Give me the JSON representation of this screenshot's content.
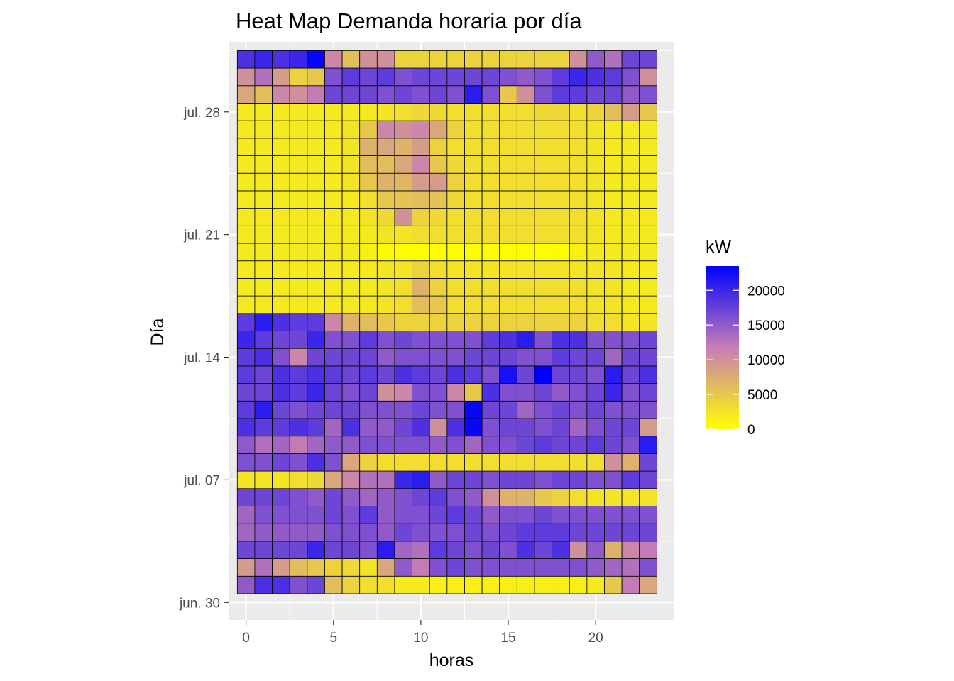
{
  "chart_data": {
    "type": "heatmap",
    "title": "Heat Map Demanda horaria por día",
    "xlabel": "horas",
    "ylabel": "Día",
    "x_ticks": [
      0,
      5,
      10,
      15,
      20
    ],
    "x_range": [
      -1,
      24.5
    ],
    "y_ticks": [
      {
        "date": "2020-06-30",
        "label": "jun. 30"
      },
      {
        "date": "2020-07-07",
        "label": "jul. 07"
      },
      {
        "date": "2020-07-14",
        "label": "jul. 14"
      },
      {
        "date": "2020-07-21",
        "label": "jul. 21"
      },
      {
        "date": "2020-07-28",
        "label": "jul. 28"
      }
    ],
    "y_range": [
      "2020-06-29",
      "2020-08-01"
    ],
    "hours": [
      0,
      1,
      2,
      3,
      4,
      5,
      6,
      7,
      8,
      9,
      10,
      11,
      12,
      13,
      14,
      15,
      16,
      17,
      18,
      19,
      20,
      21,
      22,
      23
    ],
    "days": [
      "2020-07-01",
      "2020-07-02",
      "2020-07-03",
      "2020-07-04",
      "2020-07-05",
      "2020-07-06",
      "2020-07-07",
      "2020-07-08",
      "2020-07-09",
      "2020-07-10",
      "2020-07-11",
      "2020-07-12",
      "2020-07-13",
      "2020-07-14",
      "2020-07-15",
      "2020-07-16",
      "2020-07-17",
      "2020-07-18",
      "2020-07-19",
      "2020-07-20",
      "2020-07-21",
      "2020-07-22",
      "2020-07-23",
      "2020-07-24",
      "2020-07-25",
      "2020-07-26",
      "2020-07-27",
      "2020-07-28",
      "2020-07-29",
      "2020-07-30",
      "2020-07-31"
    ],
    "values": [
      [
        15000,
        19000,
        19000,
        16000,
        17000,
        6000,
        4000,
        3000,
        3000,
        2000,
        2000,
        1500,
        1500,
        1500,
        1500,
        1500,
        1500,
        1500,
        1500,
        1500,
        2000,
        5000,
        12000,
        8000
      ],
      [
        9000,
        13000,
        9000,
        6000,
        5000,
        4000,
        3500,
        2500,
        8000,
        15000,
        12000,
        16000,
        17000,
        16000,
        16000,
        16000,
        16000,
        16000,
        16000,
        16000,
        15000,
        14000,
        13000,
        16000
      ],
      [
        17000,
        17000,
        17000,
        17000,
        20000,
        17000,
        17000,
        16000,
        21000,
        14000,
        13000,
        18000,
        17000,
        16000,
        17000,
        16000,
        19000,
        17000,
        19000,
        10000,
        15000,
        7000,
        11000,
        12000
      ],
      [
        14000,
        15000,
        15000,
        15000,
        15000,
        16000,
        16000,
        16000,
        15000,
        17000,
        16000,
        16000,
        16000,
        17000,
        16000,
        17000,
        18000,
        18000,
        18000,
        17000,
        17000,
        17000,
        17000,
        17000
      ],
      [
        14000,
        16000,
        16000,
        16000,
        16000,
        17000,
        16000,
        18000,
        15000,
        16000,
        16000,
        17000,
        18000,
        17000,
        15000,
        16000,
        16000,
        17000,
        16000,
        16000,
        16000,
        16000,
        16000,
        16000
      ],
      [
        17000,
        17000,
        17000,
        16000,
        15000,
        17000,
        15000,
        14000,
        15000,
        16000,
        17000,
        18000,
        16000,
        15000,
        10000,
        7000,
        7000,
        5000,
        4000,
        3000,
        2500,
        2500,
        2500,
        2500
      ],
      [
        2500,
        2500,
        2500,
        3000,
        3500,
        8000,
        11000,
        13000,
        13000,
        20000,
        21000,
        15000,
        17000,
        17000,
        16000,
        17000,
        17000,
        16000,
        17000,
        17000,
        16000,
        16000,
        18000,
        17000
      ],
      [
        16000,
        16000,
        17000,
        16000,
        19000,
        16000,
        8000,
        4000,
        3000,
        3000,
        3000,
        3000,
        3000,
        3000,
        3000,
        3000,
        3000,
        3000,
        3000,
        3000,
        3000,
        10000,
        7000,
        17000
      ],
      [
        15000,
        13000,
        14000,
        12000,
        14000,
        15000,
        15000,
        16000,
        16000,
        16000,
        16000,
        15000,
        16000,
        14000,
        16000,
        16000,
        17000,
        18000,
        17000,
        17000,
        18000,
        17000,
        16000,
        21000
      ],
      [
        19000,
        18000,
        18000,
        19000,
        18000,
        14000,
        19000,
        15000,
        15000,
        17000,
        19000,
        10000,
        19000,
        23000,
        16000,
        17000,
        17000,
        16000,
        17000,
        14000,
        16000,
        17000,
        17000,
        9000
      ],
      [
        18000,
        21000,
        17000,
        16000,
        17000,
        17000,
        17000,
        16000,
        16000,
        16000,
        17000,
        16000,
        16000,
        23000,
        17000,
        17000,
        14000,
        16000,
        17000,
        16000,
        17000,
        16000,
        16000,
        16000
      ],
      [
        17000,
        17000,
        19000,
        18000,
        20000,
        17000,
        16000,
        17000,
        10000,
        11000,
        16000,
        16000,
        11000,
        5000,
        19000,
        16000,
        16000,
        17000,
        15000,
        16000,
        17000,
        20000,
        16000,
        17000
      ],
      [
        18000,
        17000,
        19000,
        18000,
        19000,
        18000,
        17000,
        18000,
        17000,
        19000,
        18000,
        17000,
        19000,
        18000,
        16000,
        22000,
        17000,
        24000,
        17000,
        17000,
        16000,
        21000,
        17000,
        19000
      ],
      [
        18000,
        19000,
        16000,
        11000,
        17000,
        17000,
        17000,
        17000,
        15000,
        16000,
        16000,
        16000,
        16000,
        17000,
        17000,
        17000,
        16000,
        16000,
        18000,
        17000,
        17000,
        14000,
        17000,
        17000
      ],
      [
        20000,
        18000,
        17000,
        17000,
        20000,
        16000,
        16000,
        18000,
        16000,
        17000,
        16000,
        16000,
        16000,
        16000,
        18000,
        19000,
        21000,
        16000,
        19000,
        19000,
        16000,
        16000,
        16000,
        17000
      ],
      [
        18000,
        21000,
        19000,
        18000,
        18000,
        11000,
        7000,
        6000,
        5000,
        4000,
        4000,
        4000,
        4000,
        4000,
        4000,
        4000,
        4000,
        4000,
        4000,
        4000,
        3000,
        3000,
        2500,
        2500
      ],
      [
        2000,
        2000,
        2000,
        2000,
        2000,
        2000,
        2000,
        2000,
        2500,
        3000,
        6000,
        5000,
        3000,
        3000,
        3000,
        3000,
        3000,
        3000,
        3000,
        3000,
        2500,
        2500,
        2000,
        2000
      ],
      [
        2000,
        2000,
        2000,
        2000,
        2000,
        2000,
        2000,
        2000,
        2500,
        3000,
        7000,
        4000,
        3000,
        3000,
        3000,
        3000,
        3000,
        3000,
        3000,
        3000,
        2500,
        2500,
        2000,
        2000
      ],
      [
        2000,
        2000,
        2000,
        2000,
        2000,
        2000,
        2000,
        2000,
        2500,
        2500,
        4000,
        3000,
        2500,
        2500,
        2500,
        2500,
        2500,
        2500,
        2500,
        2500,
        2500,
        2500,
        2000,
        2000
      ],
      [
        2000,
        2000,
        2000,
        2000,
        2000,
        2000,
        2000,
        1500,
        500,
        300,
        200,
        200,
        200,
        200,
        200,
        300,
        300,
        200,
        300,
        1500,
        2000,
        2000,
        2000,
        2000
      ],
      [
        2000,
        2000,
        2000,
        2000,
        2000,
        2000,
        2000,
        2000,
        2500,
        2500,
        3000,
        3000,
        3000,
        3000,
        3000,
        3000,
        3000,
        3000,
        3000,
        3000,
        2500,
        2000,
        2000,
        2000
      ],
      [
        2000,
        2000,
        2000,
        2000,
        2000,
        2000,
        2000,
        2500,
        3500,
        10000,
        4000,
        3500,
        3000,
        3000,
        3000,
        3000,
        3000,
        3000,
        3000,
        3000,
        2500,
        2000,
        2000,
        2000
      ],
      [
        2000,
        2000,
        2000,
        2000,
        2000,
        2000,
        2000,
        3000,
        5000,
        5500,
        6000,
        5500,
        3500,
        3000,
        3000,
        3000,
        3000,
        3000,
        3000,
        3000,
        2500,
        2000,
        2000,
        2000
      ],
      [
        2000,
        2000,
        2000,
        2000,
        2000,
        2000,
        2500,
        5000,
        7000,
        6500,
        9000,
        9000,
        4000,
        3000,
        3000,
        3000,
        3000,
        3000,
        3000,
        3000,
        2500,
        2000,
        2000,
        2000
      ],
      [
        2000,
        2000,
        2000,
        2000,
        2000,
        2000,
        2500,
        6000,
        6000,
        8000,
        11000,
        5000,
        3500,
        3000,
        3000,
        3000,
        3000,
        3000,
        3000,
        3000,
        2500,
        2000,
        2000,
        2000
      ],
      [
        2000,
        2000,
        2000,
        2000,
        2000,
        2000,
        2500,
        7000,
        8000,
        7000,
        9000,
        4000,
        3000,
        3000,
        3000,
        3000,
        3000,
        3000,
        3000,
        3000,
        2500,
        2000,
        2000,
        2000
      ],
      [
        2000,
        2000,
        2000,
        2000,
        2000,
        2000,
        2500,
        5000,
        11000,
        10000,
        11000,
        8000,
        4000,
        3000,
        3000,
        3000,
        3000,
        3000,
        3000,
        3000,
        2500,
        2000,
        2000,
        2000
      ],
      [
        2000,
        2000,
        2000,
        2000,
        2000,
        2000,
        2000,
        2000,
        2500,
        3000,
        3500,
        3500,
        3000,
        3000,
        3000,
        3000,
        3000,
        3500,
        3500,
        3000,
        4000,
        6000,
        9000,
        5000
      ],
      [
        8000,
        6000,
        11000,
        10000,
        12000,
        17000,
        17000,
        17000,
        16000,
        17000,
        16000,
        17000,
        16000,
        21000,
        16000,
        5000,
        10000,
        16000,
        18000,
        18000,
        17000,
        17000,
        15000,
        16000
      ],
      [
        10000,
        13000,
        9000,
        4000,
        5000,
        16000,
        18000,
        17000,
        18000,
        16000,
        17000,
        17000,
        17000,
        17000,
        17000,
        16000,
        15000,
        16000,
        18000,
        20000,
        19000,
        18000,
        16000,
        10000
      ],
      [
        19000,
        20000,
        19000,
        20000,
        23000,
        11000,
        6000,
        10000,
        10000,
        4000,
        4000,
        4000,
        4000,
        4000,
        4000,
        4000,
        4000,
        4000,
        4000,
        10000,
        15000,
        13000,
        17000,
        17000
      ]
    ],
    "fill_scale": {
      "low_color": "#ffff00",
      "high_color": "#0000ff",
      "min": 0,
      "max": 23500
    },
    "legend": {
      "title": "kW",
      "breaks": [
        0,
        5000,
        10000,
        15000,
        20000
      ],
      "labels": [
        "0",
        "5000",
        "10000",
        "15000",
        "20000"
      ],
      "position": "right"
    },
    "grid": true,
    "colors": {
      "panel_bg": "#ebebeb",
      "grid": "#ffffff",
      "tile_border": "#000000",
      "tick_text": "#4d4d4d"
    }
  }
}
